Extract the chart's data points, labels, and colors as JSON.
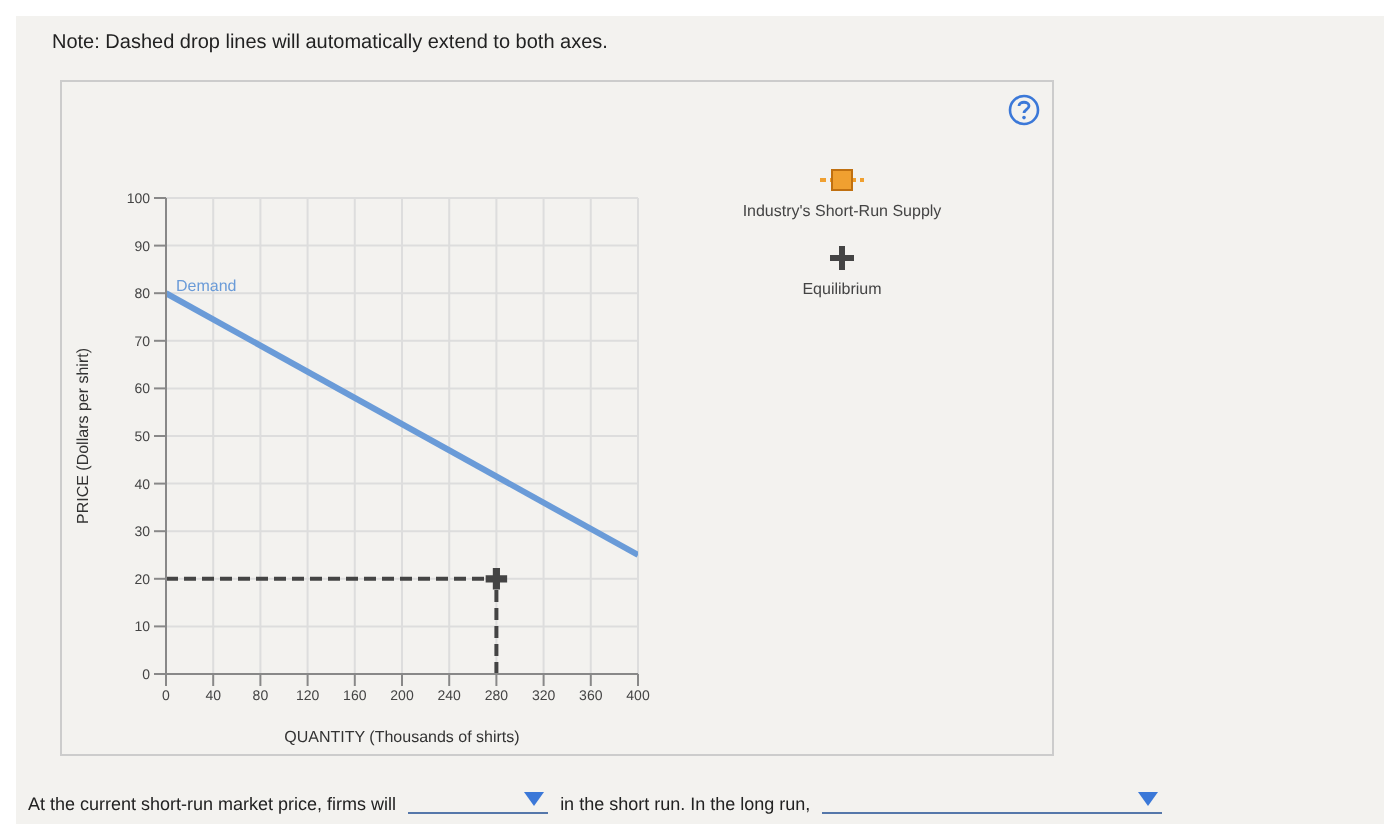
{
  "chart_data": {
    "type": "line",
    "xlabel": "QUANTITY (Thousands of shirts)",
    "ylabel": "PRICE (Dollars per shirt)",
    "xlim": [
      0,
      400
    ],
    "xticks": [
      0,
      40,
      80,
      120,
      160,
      200,
      240,
      280,
      320,
      360,
      400
    ],
    "ylim": [
      0,
      100
    ],
    "yticks": [
      0,
      10,
      20,
      30,
      40,
      50,
      60,
      70,
      80,
      90,
      100
    ],
    "grid": true,
    "legend": "right",
    "series": [
      {
        "name": "Demand",
        "color": "#6a9bd8",
        "marker": "none",
        "x": [
          0,
          400
        ],
        "values": [
          80,
          25
        ]
      },
      {
        "name": "Industry's Short-Run Supply",
        "color": "#f0a030",
        "marker": "square"
      },
      {
        "name": "Equilibrium",
        "type": "scatter",
        "color": "#444444",
        "marker": "cross",
        "x": [
          280
        ],
        "values": [
          20
        ]
      }
    ],
    "ref_lines": [
      {
        "axis": "y",
        "value": 20,
        "color": "#444444",
        "line_style": "dashed"
      },
      {
        "axis": "x",
        "value": 280,
        "color": "#444444",
        "line_style": "dashed"
      }
    ],
    "annotations": [
      "Note: Dashed drop lines will automatically extend to both axes.",
      "At the current short-run market price, firms will",
      "in the short run. In the long run,"
    ]
  }
}
